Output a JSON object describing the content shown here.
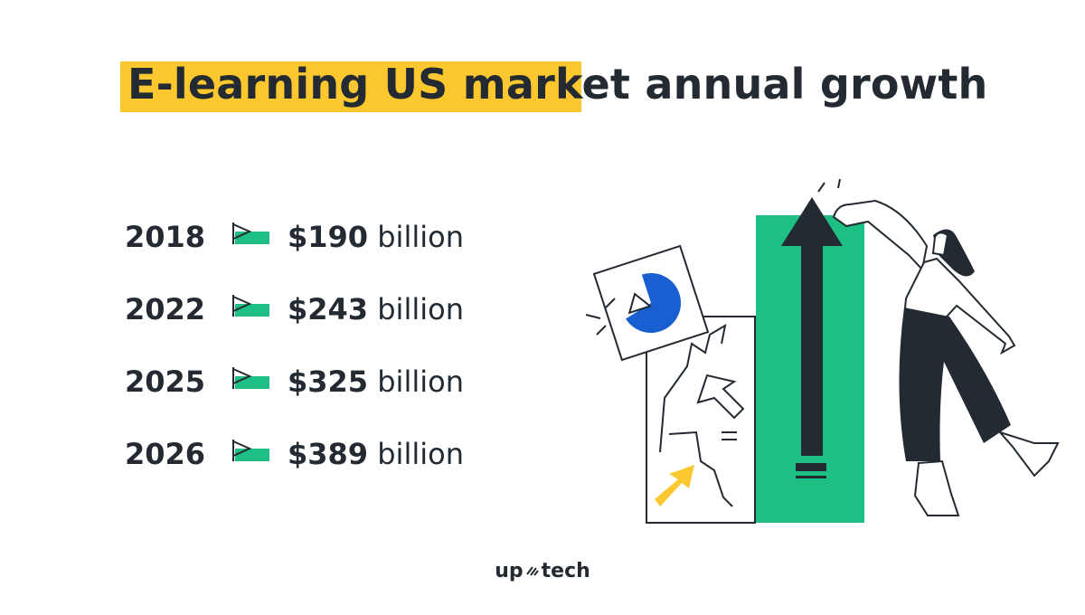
{
  "title": "E-learning US market annual growth",
  "rows": [
    {
      "year": "2018",
      "value": "$190",
      "unit": "billion"
    },
    {
      "year": "2022",
      "value": "$243",
      "unit": "billion"
    },
    {
      "year": "2025",
      "value": "$325",
      "unit": "billion"
    },
    {
      "year": "2026",
      "value": "$389",
      "unit": "billion"
    }
  ],
  "logo": {
    "left": "up",
    "right": "tech"
  },
  "colors": {
    "highlight": "#fdc82f",
    "accent_green": "#1dbf84",
    "dark": "#232a31",
    "blue": "#1a5fd1"
  },
  "icons": [
    "flag-icon",
    "growth-arrow-icon",
    "pie-chart-icon",
    "person-illustration"
  ]
}
